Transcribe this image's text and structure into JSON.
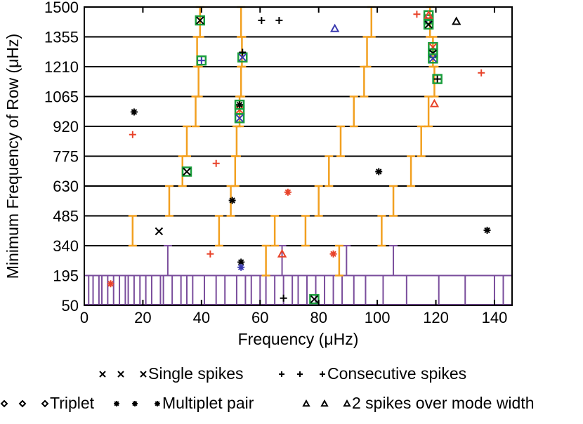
{
  "chart_data": {
    "type": "scatter",
    "title": "",
    "xlabel": "Frequency (μHz)",
    "ylabel": "Minimum Frequency of Row (μHz)",
    "xlim": [
      0,
      146
    ],
    "ylim": [
      50,
      1500
    ],
    "xticks": [
      0,
      20,
      40,
      60,
      80,
      100,
      120,
      140
    ],
    "yticks": [
      50,
      195,
      340,
      485,
      630,
      775,
      920,
      1065,
      1210,
      1355,
      1500
    ],
    "grid": "horizontal lines at each row boundary",
    "colors": {
      "black": "#000000",
      "red": "#e8432a",
      "blue": "#3a3ab0",
      "green": "#1a9e3c",
      "orange": "#f2a020",
      "purple": "#7a4d9c"
    },
    "ridge_segments": {
      "orange": [
        {
          "x": 16.5,
          "y0": 340,
          "y1": 485
        },
        {
          "x": 29,
          "y0": 485,
          "y1": 630
        },
        {
          "x": 33.5,
          "y0": 630,
          "y1": 775
        },
        {
          "x": 35,
          "y0": 775,
          "y1": 920
        },
        {
          "x": 38,
          "y0": 920,
          "y1": 1065
        },
        {
          "x": 39,
          "y0": 1065,
          "y1": 1210
        },
        {
          "x": 38.5,
          "y0": 1210,
          "y1": 1355
        },
        {
          "x": 39.5,
          "y0": 1355,
          "y1": 1500
        },
        {
          "x": 46,
          "y0": 340,
          "y1": 485
        },
        {
          "x": 50,
          "y0": 485,
          "y1": 630
        },
        {
          "x": 51.5,
          "y0": 630,
          "y1": 775
        },
        {
          "x": 52,
          "y0": 775,
          "y1": 920
        },
        {
          "x": 53,
          "y0": 920,
          "y1": 1065
        },
        {
          "x": 53.5,
          "y0": 1065,
          "y1": 1210
        },
        {
          "x": 53.8,
          "y0": 1210,
          "y1": 1355
        },
        {
          "x": 53.5,
          "y0": 1355,
          "y1": 1500
        },
        {
          "x": 62,
          "y0": 195,
          "y1": 340
        },
        {
          "x": 65,
          "y0": 340,
          "y1": 485
        },
        {
          "x": 75.5,
          "y0": 340,
          "y1": 485
        },
        {
          "x": 80,
          "y0": 485,
          "y1": 630
        },
        {
          "x": 87,
          "y0": 195,
          "y1": 340
        },
        {
          "x": 83.5,
          "y0": 630,
          "y1": 775
        },
        {
          "x": 87.5,
          "y0": 775,
          "y1": 920
        },
        {
          "x": 92,
          "y0": 920,
          "y1": 1065
        },
        {
          "x": 95.5,
          "y0": 1065,
          "y1": 1210
        },
        {
          "x": 96.5,
          "y0": 1210,
          "y1": 1355
        },
        {
          "x": 98,
          "y0": 1355,
          "y1": 1500
        },
        {
          "x": 101.5,
          "y0": 340,
          "y1": 485
        },
        {
          "x": 105.5,
          "y0": 485,
          "y1": 630
        },
        {
          "x": 111.5,
          "y0": 630,
          "y1": 775
        },
        {
          "x": 115,
          "y0": 775,
          "y1": 920
        },
        {
          "x": 117.5,
          "y0": 920,
          "y1": 1065
        },
        {
          "x": 119.5,
          "y0": 1065,
          "y1": 1210
        },
        {
          "x": 119,
          "y0": 1210,
          "y1": 1355
        },
        {
          "x": 118,
          "y0": 1355,
          "y1": 1500
        }
      ],
      "purple_band": {
        "y0": 50,
        "y1": 195,
        "x": [
          1.5,
          3,
          5,
          6,
          8,
          10,
          12,
          14,
          15,
          17,
          19,
          21,
          23,
          26,
          27,
          30,
          33,
          35,
          37,
          41,
          45,
          48,
          52,
          55,
          57,
          60,
          62,
          65,
          68,
          71,
          73,
          76,
          79,
          82,
          85,
          88,
          92,
          96,
          102,
          110,
          121,
          130,
          140,
          143
        ]
      },
      "purple_tall": [
        {
          "x": 28.5,
          "y0": 195,
          "y1": 340
        },
        {
          "x": 67.5,
          "y0": 195,
          "y1": 340
        },
        {
          "x": 89.5,
          "y0": 195,
          "y1": 340
        },
        {
          "x": 105.5,
          "y0": 195,
          "y1": 340
        }
      ]
    },
    "series": [
      {
        "name": "Single spikes",
        "marker": "x",
        "points": [
          {
            "x": 39.5,
            "y": 1435,
            "color": "black",
            "box": true
          },
          {
            "x": 35,
            "y": 700,
            "color": "black",
            "box": true
          },
          {
            "x": 53,
            "y": 1000,
            "color": "red",
            "box": true
          },
          {
            "x": 53,
            "y": 960,
            "color": "blue",
            "box": true
          },
          {
            "x": 54,
            "y": 1255,
            "color": "blue",
            "box": true
          },
          {
            "x": 117.5,
            "y": 1440,
            "color": "blue",
            "box": true
          },
          {
            "x": 117.5,
            "y": 1415,
            "color": "black",
            "box": true
          },
          {
            "x": 119,
            "y": 1305,
            "color": "red",
            "box": true
          },
          {
            "x": 119,
            "y": 1275,
            "color": "black",
            "box": true
          },
          {
            "x": 119,
            "y": 1250,
            "color": "blue",
            "box": true
          },
          {
            "x": 25.5,
            "y": 410,
            "color": "black",
            "box": false
          },
          {
            "x": 78.5,
            "y": 80,
            "color": "black",
            "box": true
          }
        ]
      },
      {
        "name": "Consecutive spikes",
        "marker": "+",
        "points": [
          {
            "x": 16.5,
            "y": 880,
            "color": "red",
            "box": false
          },
          {
            "x": 45,
            "y": 740,
            "color": "red",
            "box": false
          },
          {
            "x": 43,
            "y": 300,
            "color": "red",
            "box": false
          },
          {
            "x": 60.5,
            "y": 1435,
            "color": "black",
            "box": false
          },
          {
            "x": 66.5,
            "y": 1435,
            "color": "black",
            "box": false
          },
          {
            "x": 113.5,
            "y": 1465,
            "color": "red",
            "box": false
          },
          {
            "x": 135.5,
            "y": 1180,
            "color": "red",
            "box": false
          },
          {
            "x": 68,
            "y": 85,
            "color": "black",
            "box": false
          },
          {
            "x": 54,
            "y": 1280,
            "color": "black",
            "box": false
          },
          {
            "x": 40,
            "y": 1240,
            "color": "blue",
            "box": true
          },
          {
            "x": 120.5,
            "y": 1150,
            "color": "black",
            "box": true
          }
        ]
      },
      {
        "name": "Triplet",
        "marker": "diamond",
        "points": []
      },
      {
        "name": "Multiplet pair",
        "marker": "*",
        "points": [
          {
            "x": 17,
            "y": 990,
            "color": "black",
            "box": false
          },
          {
            "x": 50.5,
            "y": 560,
            "color": "black",
            "box": false
          },
          {
            "x": 53.5,
            "y": 260,
            "color": "black",
            "box": false
          },
          {
            "x": 53.5,
            "y": 235,
            "color": "blue",
            "box": false
          },
          {
            "x": 69.5,
            "y": 600,
            "color": "red",
            "box": false
          },
          {
            "x": 85,
            "y": 300,
            "color": "red",
            "box": false
          },
          {
            "x": 100.5,
            "y": 700,
            "color": "black",
            "box": false
          },
          {
            "x": 137.5,
            "y": 415,
            "color": "black",
            "box": false
          },
          {
            "x": 9,
            "y": 155,
            "color": "red",
            "box": false
          },
          {
            "x": 53,
            "y": 1025,
            "color": "black",
            "box": true
          }
        ]
      },
      {
        "name": "2 spikes over mode width",
        "marker": "triangle",
        "points": [
          {
            "x": 85.5,
            "y": 1395,
            "color": "blue",
            "box": false
          },
          {
            "x": 127,
            "y": 1430,
            "color": "black",
            "box": false
          },
          {
            "x": 119.5,
            "y": 1030,
            "color": "red",
            "box": false
          },
          {
            "x": 67.5,
            "y": 300,
            "color": "red",
            "box": false
          },
          {
            "x": 117.5,
            "y": 1460,
            "color": "red",
            "box": true
          }
        ]
      }
    ],
    "legend": {
      "placement": "bottom",
      "entries": [
        {
          "label": "Single spikes",
          "marker": "x"
        },
        {
          "label": "Consecutive spikes",
          "marker": "+"
        },
        {
          "label": "Triplet",
          "marker": "diamond"
        },
        {
          "label": "Multiplet pair",
          "marker": "*"
        },
        {
          "label": "2 spikes over mode width",
          "marker": "triangle"
        }
      ]
    }
  }
}
